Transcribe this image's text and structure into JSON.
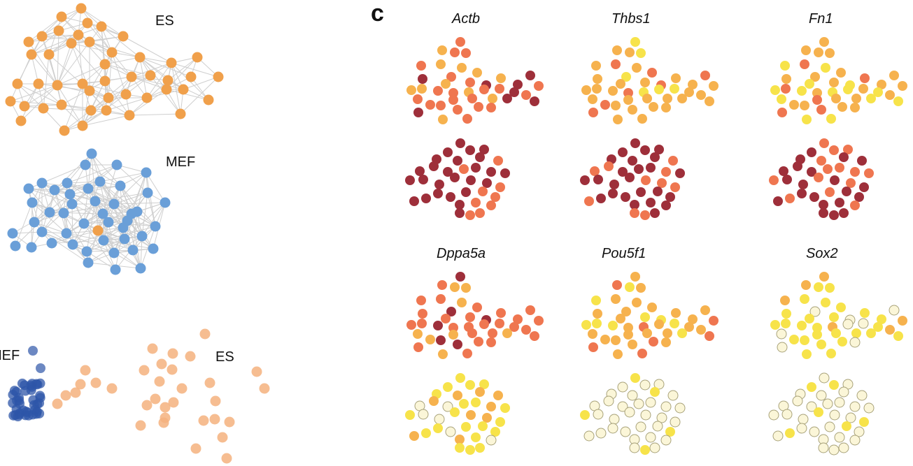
{
  "panel_label": "c",
  "labels": {
    "es_network": "ES",
    "mef_network": "MEF",
    "mef_embedding": "MEF",
    "es_embedding": "ES"
  },
  "colors": {
    "es": "#f0a04b",
    "mef": "#6a9fd8",
    "mef_embed": "#2e55a8",
    "es_embed": "#f4b27e",
    "edge": "#cfcfcf",
    "expr_absent": "#fbf6d8",
    "expr_low": "#f7e34a",
    "expr_midlow": "#f6b24e",
    "expr_mid": "#ef7650",
    "expr_high": "#9e2f3a"
  },
  "chart_data": [
    {
      "type": "scatter",
      "description_of_marks": "network of ES cells",
      "series": [
        {
          "name": "ES",
          "group": "es"
        }
      ]
    },
    {
      "type": "scatter",
      "series": [
        {
          "name": "MEF",
          "group": "mef"
        }
      ]
    },
    {
      "type": "scatter",
      "series": [
        {
          "name": "MEF",
          "group": "mef_embed"
        },
        {
          "name": "ES",
          "group": "es_embed"
        }
      ]
    },
    {
      "type": "scatter",
      "genes": [
        "Actb",
        "Thbs1",
        "Fn1",
        "Dppa5a",
        "Pou5f1",
        "Sox2"
      ],
      "expression_levels": [
        "absent",
        "low",
        "midlow",
        "mid",
        "high"
      ],
      "es_high_level": {
        "Actb": "mid",
        "Thbs1": "midlow",
        "Fn1": "midlow",
        "Dppa5a": "mid",
        "Pou5f1": "midlow",
        "Sox2": "low"
      },
      "mef_high_level": {
        "Actb": "high",
        "Thbs1": "high",
        "Fn1": "high",
        "Dppa5a": "low",
        "Pou5f1": "absent",
        "Sox2": "absent"
      }
    }
  ]
}
